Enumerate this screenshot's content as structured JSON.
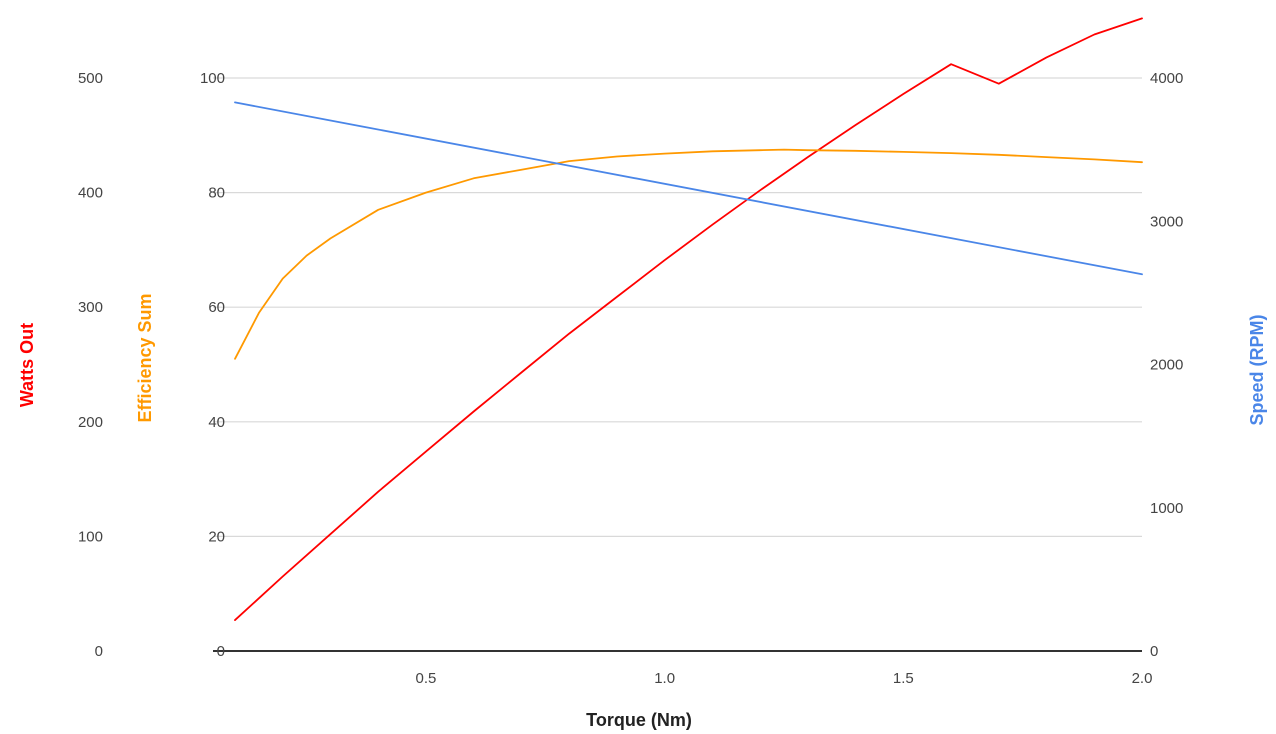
{
  "chart_data": {
    "type": "line",
    "title": "",
    "xlabel": "Torque (Nm)",
    "xlim": [
      0.1,
      2.0
    ],
    "xticks": [
      {
        "value": 0.5,
        "label": "0.5"
      },
      {
        "value": 1.0,
        "label": "1.0"
      },
      {
        "value": 1.5,
        "label": "1.5"
      },
      {
        "value": 2.0,
        "label": "2.0"
      }
    ],
    "grid": true,
    "legend": "none",
    "axes": {
      "watts": {
        "label": "Watts Out",
        "color": "#ff0000",
        "ylim": [
          0,
          500
        ],
        "ticks": [
          "0",
          "100",
          "200",
          "300",
          "400",
          "500"
        ],
        "tick_values": [
          0,
          100,
          200,
          300,
          400,
          500
        ]
      },
      "efficiency": {
        "label": "Efficiency Sum",
        "color": "#ff9900",
        "ylim": [
          0,
          100
        ],
        "ticks": [
          "0",
          "20",
          "40",
          "60",
          "80",
          "100"
        ],
        "tick_values": [
          0,
          20,
          40,
          60,
          80,
          100
        ]
      },
      "speed": {
        "label": "Speed (RPM)",
        "color": "#4a86e8",
        "ylim": [
          0,
          4000
        ],
        "ticks": [
          "0",
          "1000",
          "2000",
          "3000",
          "4000"
        ],
        "tick_values": [
          0,
          1000,
          2000,
          3000,
          4000
        ]
      }
    },
    "series": [
      {
        "axis": "watts",
        "color": "#ff0000",
        "x": [
          0.1,
          0.2,
          0.3,
          0.4,
          0.5,
          0.6,
          0.7,
          0.8,
          0.9,
          1.0,
          1.1,
          1.2,
          1.3,
          1.4,
          1.5,
          1.6,
          1.7,
          1.8,
          1.9,
          2.0
        ],
        "y": [
          27,
          65,
          102,
          139,
          174,
          209,
          243,
          277,
          309,
          341,
          372,
          402,
          431,
          459,
          486,
          512,
          495,
          518,
          538,
          552
        ]
      },
      {
        "axis": "efficiency",
        "color": "#ff9900",
        "x": [
          0.1,
          0.15,
          0.2,
          0.25,
          0.3,
          0.4,
          0.5,
          0.6,
          0.7,
          0.8,
          0.9,
          1.0,
          1.1,
          1.2,
          1.25,
          1.3,
          1.4,
          1.5,
          1.6,
          1.7,
          1.8,
          1.9,
          2.0
        ],
        "y": [
          51,
          59,
          65,
          69,
          72,
          77,
          80,
          82.5,
          84,
          85.5,
          86.3,
          86.8,
          87.2,
          87.4,
          87.5,
          87.4,
          87.3,
          87.1,
          86.9,
          86.6,
          86.2,
          85.8,
          85.3
        ]
      },
      {
        "axis": "speed",
        "color": "#4a86e8",
        "x": [
          0.1,
          2.0
        ],
        "y": [
          3830,
          2630
        ]
      }
    ]
  }
}
